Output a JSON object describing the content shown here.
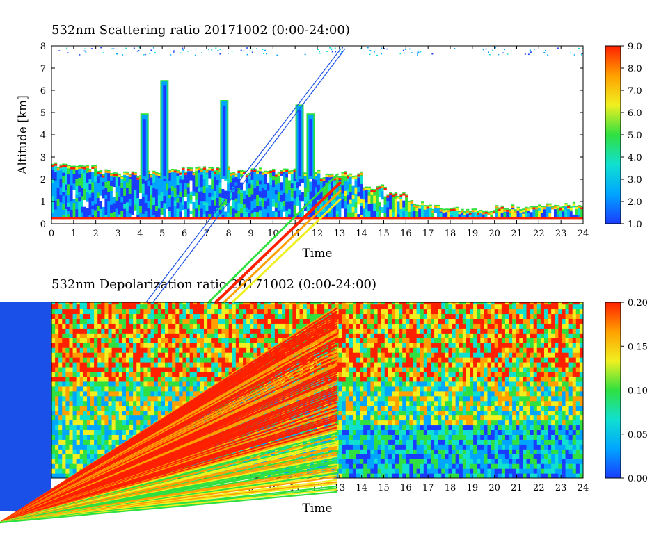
{
  "chart_data": [
    {
      "type": "heatmap",
      "title": "532nm Scattering ratio  20171002 (0:00-24:00)",
      "xlabel": "Time",
      "ylabel": "Altitude [km]",
      "xlim": [
        0,
        24
      ],
      "ylim": [
        0,
        8
      ],
      "x_ticks": [
        0,
        1,
        2,
        3,
        4,
        5,
        6,
        7,
        8,
        9,
        10,
        11,
        12,
        13,
        14,
        15,
        16,
        17,
        18,
        19,
        20,
        21,
        22,
        23,
        24
      ],
      "y_ticks": [
        0,
        1,
        2,
        3,
        4,
        5,
        6,
        7,
        8
      ],
      "colorbar": {
        "min": 1.0,
        "max": 9.0,
        "ticks": [
          "1.0",
          "2.0",
          "3.0",
          "4.0",
          "5.0",
          "6.0",
          "7.0",
          "8.0",
          "9.0"
        ]
      },
      "colormap": [
        "#1a3cff",
        "#00a5ff",
        "#10e0d0",
        "#30e040",
        "#f0f020",
        "#ffa000",
        "#ff2000"
      ],
      "cloud_top_km": [
        2.5,
        2.4,
        2.2,
        2.1,
        2.2,
        2.3,
        2.3,
        2.3,
        2.2,
        2.3,
        2.2,
        2.2,
        2.0,
        2.1,
        1.5,
        1.2,
        0.8,
        0.6,
        0.5,
        0.5,
        0.6,
        0.6,
        0.7,
        0.7
      ],
      "plumes": [
        {
          "time": 4.2,
          "top_km": 4.9
        },
        {
          "time": 5.1,
          "top_km": 6.4
        },
        {
          "time": 7.8,
          "top_km": 5.5
        },
        {
          "time": 11.2,
          "top_km": 5.3
        },
        {
          "time": 11.7,
          "top_km": 4.9
        }
      ]
    },
    {
      "type": "heatmap",
      "title": "532nm Depolarization ratio  20171002 (0:00-24:00)",
      "xlabel": "Time",
      "xlim": [
        0,
        24
      ],
      "ylim": [
        0,
        8
      ],
      "x_ticks": [
        9,
        10,
        11,
        12,
        13,
        14,
        15,
        16,
        17,
        18,
        19,
        20,
        21,
        22,
        23,
        24
      ],
      "colorbar": {
        "min": 0.0,
        "max": 0.2,
        "ticks": [
          "0.00",
          "0.05",
          "0.10",
          "0.15",
          "0.20"
        ]
      },
      "colormap": [
        "#1a3cff",
        "#00a5ff",
        "#10e0d0",
        "#30e040",
        "#f0f020",
        "#ffa000",
        "#ff2000"
      ]
    }
  ]
}
